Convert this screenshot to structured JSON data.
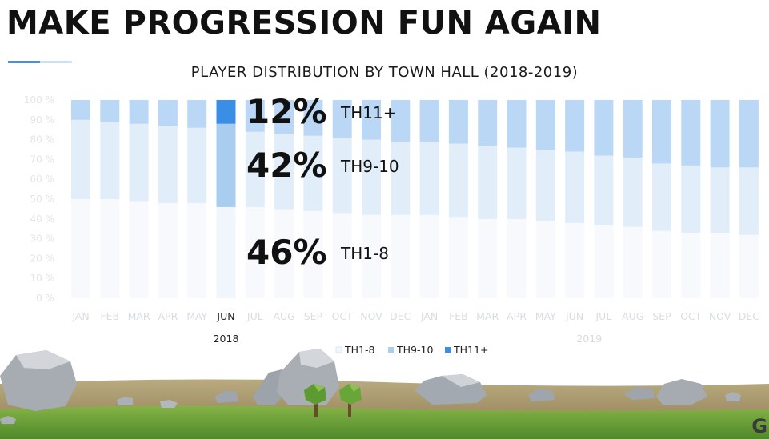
{
  "slide": {
    "title": "MAKE PROGRESSION FUN AGAIN",
    "watermark": "G"
  },
  "chart_data": {
    "type": "bar",
    "stacked": true,
    "title": "PLAYER DISTRIBUTION BY TOWN HALL (2018-2019)",
    "categories": [
      "JAN",
      "FEB",
      "MAR",
      "APR",
      "MAY",
      "JUN",
      "JUL",
      "AUG",
      "SEP",
      "OCT",
      "NOV",
      "DEC",
      "JAN",
      "FEB",
      "MAR",
      "APR",
      "MAY",
      "JUN",
      "JUL",
      "AUG",
      "SEP",
      "OCT",
      "NOV",
      "DEC"
    ],
    "year_groups": [
      {
        "label": "2018",
        "start": 0,
        "end": 11
      },
      {
        "label": "2019",
        "start": 12,
        "end": 23
      }
    ],
    "yticks": [
      "0 %",
      "10 %",
      "20 %",
      "30 %",
      "40 %",
      "50 %",
      "60 %",
      "70 %",
      "80 %",
      "90 %",
      "100 %"
    ],
    "ylim": [
      0,
      100
    ],
    "series": [
      {
        "name": "TH1-8",
        "color": "#f1f6fc",
        "values": [
          50,
          50,
          49,
          48,
          48,
          46,
          46,
          45,
          44,
          43,
          42,
          42,
          42,
          41,
          40,
          40,
          39,
          38,
          37,
          36,
          34,
          33,
          33,
          32
        ]
      },
      {
        "name": "TH9-10",
        "color": "#a9cdee",
        "values": [
          40,
          39,
          39,
          39,
          38,
          42,
          38,
          38,
          38,
          38,
          38,
          37,
          37,
          37,
          37,
          36,
          36,
          36,
          35,
          35,
          34,
          34,
          33,
          34
        ]
      },
      {
        "name": "TH11+",
        "color": "#3a8ee6",
        "values": [
          10,
          11,
          12,
          13,
          14,
          12,
          16,
          17,
          18,
          19,
          20,
          21,
          21,
          22,
          23,
          24,
          25,
          26,
          28,
          29,
          32,
          33,
          34,
          34
        ]
      }
    ],
    "highlight_index": 5,
    "callouts": [
      {
        "value": "12%",
        "label": "TH11+"
      },
      {
        "value": "42%",
        "label": "TH9-10"
      },
      {
        "value": "46%",
        "label": "TH1-8"
      }
    ],
    "legend_position": "bottom-center"
  }
}
